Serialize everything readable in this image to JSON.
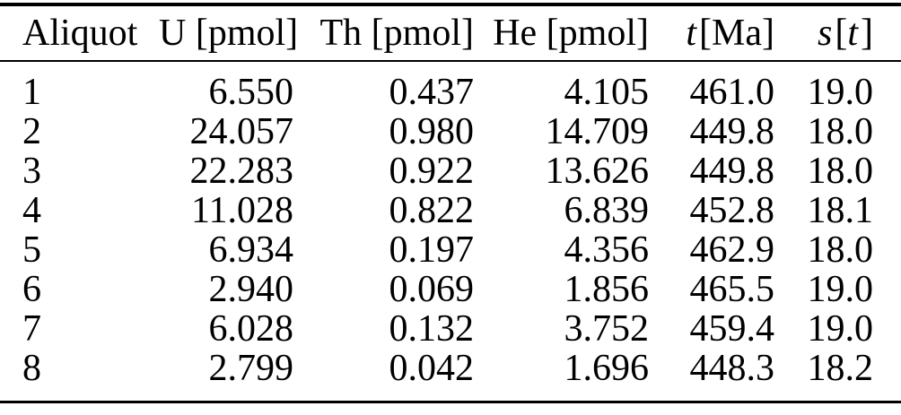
{
  "page": {
    "background_color": "#ffffff",
    "text_color": "#000000",
    "rule_color": "#000000"
  },
  "table": {
    "columns": [
      {
        "id": "aliquot",
        "align": "left",
        "parts": [
          {
            "text": "Aliquot",
            "italic": false
          }
        ]
      },
      {
        "id": "u-pmol",
        "align": "right",
        "parts": [
          {
            "text": "U [pmol]",
            "italic": false
          }
        ]
      },
      {
        "id": "th-pmol",
        "align": "right",
        "parts": [
          {
            "text": "Th [pmol]",
            "italic": false
          }
        ]
      },
      {
        "id": "he-pmol",
        "align": "right",
        "parts": [
          {
            "text": "He [pmol]",
            "italic": false
          }
        ]
      },
      {
        "id": "t-ma",
        "align": "right",
        "parts": [
          {
            "text": "t",
            "italic": true
          },
          {
            "text": "[Ma]",
            "italic": false
          }
        ]
      },
      {
        "id": "s-t",
        "align": "right",
        "parts": [
          {
            "text": "s",
            "italic": true
          },
          {
            "text": "[",
            "italic": false
          },
          {
            "text": "t",
            "italic": true
          },
          {
            "text": "]",
            "italic": false
          }
        ]
      }
    ],
    "rows": [
      [
        "1",
        "6.550",
        "0.437",
        "4.105",
        "461.0",
        "19.0"
      ],
      [
        "2",
        "24.057",
        "0.980",
        "14.709",
        "449.8",
        "18.0"
      ],
      [
        "3",
        "22.283",
        "0.922",
        "13.626",
        "449.8",
        "18.0"
      ],
      [
        "4",
        "11.028",
        "0.822",
        "6.839",
        "452.8",
        "18.1"
      ],
      [
        "5",
        "6.934",
        "0.197",
        "4.356",
        "462.9",
        "18.0"
      ],
      [
        "6",
        "2.940",
        "0.069",
        "1.856",
        "465.5",
        "19.0"
      ],
      [
        "7",
        "6.028",
        "0.132",
        "3.752",
        "459.4",
        "19.0"
      ],
      [
        "8",
        "2.799",
        "0.042",
        "1.696",
        "448.3",
        "18.2"
      ]
    ]
  }
}
